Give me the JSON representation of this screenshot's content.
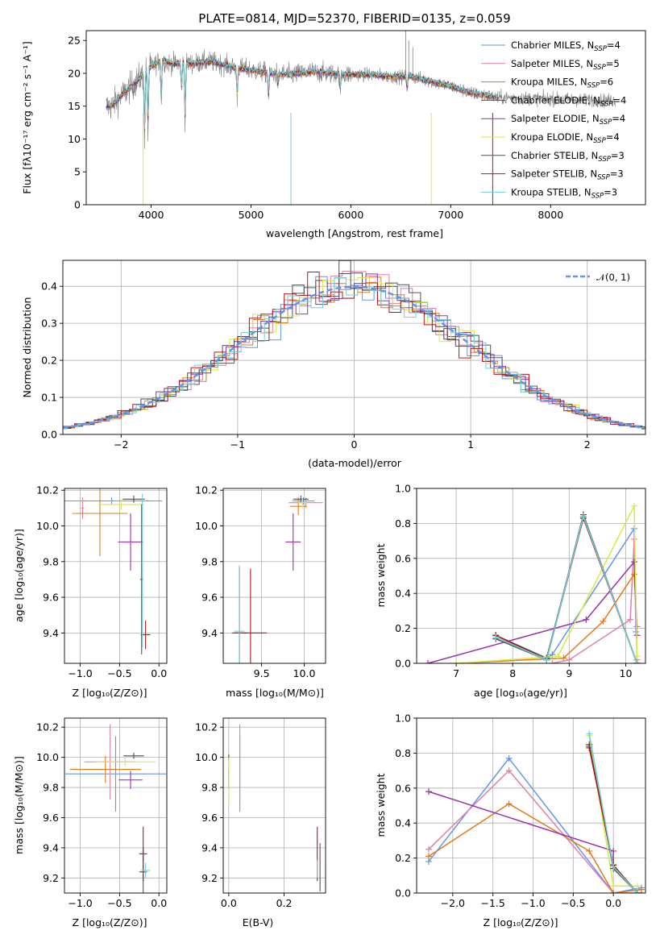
{
  "figure": {
    "title": "PLATE=0814, MJD=52370, FIBERID=0135, z=0.059"
  },
  "colors": {
    "obs": "#808080",
    "Chabrier MILES": "#6495ed",
    "Salpeter MILES": "#e07fa8",
    "Kroupa MILES": "#e07b1a",
    "Chabrier ELODIE": "#4e4e4e",
    "Salpeter ELODIE": "#9b30b0",
    "Kroupa ELODIE": "#d8e848",
    "Chabrier STELIB": "#555555",
    "Salpeter STELIB": "#b01818",
    "Kroupa STELIB": "#6fcfd8"
  },
  "labels": {
    "spec_xlabel": "wavelength [Angstrom, rest frame]",
    "spec_ylabel": "Flux [fλ10⁻¹⁷ erg cm⁻² s⁻¹ A⁻¹]",
    "res_xlabel": "(data-model)/error",
    "res_ylabel": "Normed distribution",
    "res_legend": "𝒩(0, 1)",
    "age_label": "age  [log₁₀(age/yr)]",
    "z_label": "Z [log₁₀(Z/Z⊙)]",
    "mass_label": "mass [log₁₀(M/M⊙)]",
    "mw_label": "mass weight",
    "ebv_label": "E(B-V)"
  },
  "legend_entries": [
    {
      "name": "Chabrier MILES",
      "nssp": "4"
    },
    {
      "name": "Salpeter MILES",
      "nssp": "5"
    },
    {
      "name": "Kroupa MILES",
      "nssp": "6"
    },
    {
      "name": "Chabrier ELODIE",
      "nssp": "4"
    },
    {
      "name": "Salpeter ELODIE",
      "nssp": "4"
    },
    {
      "name": "Kroupa ELODIE",
      "nssp": "4"
    },
    {
      "name": "Chabrier STELIB",
      "nssp": "3"
    },
    {
      "name": "Salpeter STELIB",
      "nssp": "3"
    },
    {
      "name": "Kroupa STELIB",
      "nssp": "3"
    }
  ],
  "chart_data": [
    {
      "id": "spectrum",
      "type": "line",
      "title": "PLATE=0814, MJD=52370, FIBERID=0135, z=0.059",
      "xlabel": "wavelength [Angstrom, rest frame]",
      "ylabel": "Flux [fλ10⁻¹⁷ erg cm⁻² s⁻¹ A⁻¹]",
      "xlim": [
        3350,
        8950
      ],
      "ylim": [
        0,
        26.5
      ],
      "xticks": [
        4000,
        5000,
        6000,
        7000,
        8000
      ],
      "yticks": [
        0,
        5,
        10,
        15,
        20,
        25
      ],
      "grid": false,
      "legend": "upper right",
      "continuum": [
        [
          3600,
          15.0
        ],
        [
          3700,
          16.5
        ],
        [
          3800,
          18.0
        ],
        [
          3900,
          19.5
        ],
        [
          4000,
          21.0
        ],
        [
          4100,
          22.0
        ],
        [
          4200,
          21.5
        ],
        [
          4400,
          21.5
        ],
        [
          4600,
          21.8
        ],
        [
          4800,
          21.0
        ],
        [
          5000,
          20.5
        ],
        [
          5200,
          20.0
        ],
        [
          5400,
          19.8
        ],
        [
          5600,
          20.2
        ],
        [
          5800,
          20.0
        ],
        [
          6000,
          19.8
        ],
        [
          6200,
          19.8
        ],
        [
          6400,
          19.5
        ],
        [
          6600,
          19.5
        ],
        [
          6800,
          18.8
        ],
        [
          7000,
          18.0
        ],
        [
          7200,
          17.0
        ],
        [
          7400,
          16.5
        ],
        [
          7500,
          16.2
        ]
      ],
      "absorption_lines": [
        [
          3934,
          9
        ],
        [
          3968,
          10
        ],
        [
          4101,
          15
        ],
        [
          4304,
          17
        ],
        [
          4340,
          12
        ],
        [
          4861,
          16
        ],
        [
          5175,
          16
        ],
        [
          5270,
          18
        ],
        [
          5893,
          17
        ],
        [
          6563,
          17.5
        ]
      ],
      "model_range": [
        3550,
        7470
      ],
      "obs_range": [
        3550,
        8650
      ]
    },
    {
      "id": "residuals",
      "type": "line",
      "xlabel": "(data-model)/error",
      "ylabel": "Normed distribution",
      "xlim": [
        -2.5,
        2.5
      ],
      "ylim": [
        0,
        0.47
      ],
      "xticks": [
        -2,
        -1,
        0,
        1,
        2
      ],
      "yticks": [
        0.0,
        0.1,
        0.2,
        0.3,
        0.4
      ],
      "grid": true,
      "legend": "upper right",
      "series": [
        {
          "name": "𝒩(0, 1)",
          "style": "dashed",
          "function": "normal",
          "mu": 0,
          "sigma": 1
        }
      ],
      "histogram_bin_width": 0.1
    },
    {
      "id": "age_vs_Z",
      "type": "scatter",
      "xlabel": "Z [log₁₀(Z/Z⊙)]",
      "ylabel": "age  [log₁₀(age/yr)]",
      "xlim": [
        -1.2,
        0.1
      ],
      "ylim": [
        9.23,
        10.21
      ],
      "xticks": [
        -1.0,
        -0.5,
        0.0
      ],
      "yticks": [
        9.4,
        9.6,
        9.8,
        10.0,
        10.2
      ],
      "grid": true,
      "points": [
        {
          "s": "Chabrier MILES",
          "x": -0.6,
          "xe": 0.64,
          "y": 10.14,
          "ye": 0.02
        },
        {
          "s": "Salpeter MILES",
          "x": -0.97,
          "xe": 0.02,
          "y": 10.1,
          "ye": 0.06
        },
        {
          "s": "Kroupa MILES",
          "x": -0.75,
          "xe": 0.35,
          "y": 10.07,
          "ye": 0.24
        },
        {
          "s": "Chabrier ELODIE",
          "x": -0.32,
          "xe": 0.14,
          "y": 10.15,
          "ye": 0.02
        },
        {
          "s": "Salpeter ELODIE",
          "x": -0.36,
          "xe": 0.16,
          "y": 9.91,
          "ye": 0.16
        },
        {
          "s": "Kroupa ELODIE",
          "x": -0.48,
          "xe": 0.29,
          "y": 10.12,
          "ye": 0.03
        },
        {
          "s": "Chabrier STELIB",
          "x": -0.22,
          "xe": 0.02,
          "y": 9.7,
          "ye": 0.42
        },
        {
          "s": "Salpeter STELIB",
          "x": -0.17,
          "xe": 0.06,
          "y": 9.39,
          "ye": 0.08
        },
        {
          "s": "Kroupa STELIB",
          "x": -0.21,
          "xe": 0.01,
          "y": 9.75,
          "ye": 0.43
        }
      ]
    },
    {
      "id": "age_vs_mass",
      "type": "scatter",
      "xlabel": "mass [log₁₀(M/M⊙)]",
      "ylabel": "",
      "xlim": [
        9.05,
        10.25
      ],
      "ylim": [
        9.23,
        10.21
      ],
      "xticks": [
        9.5,
        10.0
      ],
      "yticks": [
        9.4,
        9.6,
        9.8,
        10.0,
        10.2
      ],
      "grid": true,
      "points": [
        {
          "s": "Chabrier MILES",
          "x": 9.99,
          "xe": 0.13,
          "y": 10.14,
          "ye": 0.02
        },
        {
          "s": "Salpeter MILES",
          "x": 10.02,
          "xe": 0.2,
          "y": 10.13,
          "ye": 0.03
        },
        {
          "s": "Kroupa MILES",
          "x": 9.93,
          "xe": 0.1,
          "y": 10.11,
          "ye": 0.05
        },
        {
          "s": "Chabrier ELODIE",
          "x": 9.96,
          "xe": 0.09,
          "y": 10.15,
          "ye": 0.02
        },
        {
          "s": "Salpeter ELODIE",
          "x": 9.87,
          "xe": 0.09,
          "y": 9.91,
          "ye": 0.16
        },
        {
          "s": "Kroupa ELODIE",
          "x": 9.98,
          "xe": 0.05,
          "y": 10.13,
          "ye": 0.03
        },
        {
          "s": "Chabrier STELIB",
          "x": 9.24,
          "xe": 0.09,
          "y": 9.4,
          "ye": 0.37
        },
        {
          "s": "Salpeter STELIB",
          "x": 9.37,
          "xe": 0.19,
          "y": 9.4,
          "ye": 0.36
        },
        {
          "s": "Kroupa STELIB",
          "x": 9.24,
          "xe": 0.06,
          "y": 9.41,
          "ye": 0.37
        }
      ]
    },
    {
      "id": "massweight_vs_age",
      "type": "line",
      "xlabel": "age  [log₁₀(age/yr)]",
      "ylabel": "mass weight",
      "xlim": [
        6.3,
        10.35
      ],
      "ylim": [
        0,
        1.0
      ],
      "xticks": [
        7,
        8,
        9,
        10
      ],
      "yticks": [
        0.0,
        0.2,
        0.4,
        0.6,
        0.8,
        1.0
      ],
      "grid": true,
      "series": [
        {
          "name": "Chabrier MILES",
          "values": [
            [
              8.6,
              0.03
            ],
            [
              8.7,
              0.05
            ],
            [
              10.15,
              0.77
            ],
            [
              10.18,
              0.18
            ]
          ]
        },
        {
          "name": "Salpeter MILES",
          "values": [
            [
              8.7,
              0.0
            ],
            [
              9.0,
              0.02
            ],
            [
              10.08,
              0.25
            ],
            [
              10.15,
              0.71
            ],
            [
              10.2,
              0.02
            ]
          ]
        },
        {
          "name": "Kroupa MILES",
          "values": [
            [
              7.0,
              0.0
            ],
            [
              8.9,
              0.03
            ],
            [
              9.6,
              0.24
            ],
            [
              10.15,
              0.51
            ],
            [
              10.2,
              0.21
            ]
          ]
        },
        {
          "name": "Chabrier ELODIE",
          "values": [
            [
              7.7,
              0.16
            ],
            [
              8.6,
              0.03
            ],
            [
              9.25,
              0.84
            ],
            [
              10.2,
              0.0
            ]
          ]
        },
        {
          "name": "Salpeter ELODIE",
          "values": [
            [
              6.5,
              0.0
            ],
            [
              9.3,
              0.25
            ],
            [
              10.15,
              0.58
            ],
            [
              10.2,
              0.16
            ]
          ]
        },
        {
          "name": "Kroupa ELODIE",
          "values": [
            [
              7.0,
              0.0
            ],
            [
              8.8,
              0.04
            ],
            [
              10.15,
              0.9
            ],
            [
              10.2,
              0.04
            ]
          ]
        },
        {
          "name": "Chabrier STELIB",
          "values": [
            [
              7.7,
              0.14
            ],
            [
              8.6,
              0.02
            ],
            [
              9.25,
              0.85
            ],
            [
              10.2,
              0.0
            ]
          ]
        },
        {
          "name": "Salpeter STELIB",
          "values": [
            [
              7.7,
              0.16
            ],
            [
              8.6,
              0.02
            ],
            [
              9.25,
              0.83
            ],
            [
              10.2,
              0.0
            ]
          ]
        },
        {
          "name": "Kroupa STELIB",
          "values": [
            [
              7.7,
              0.15
            ],
            [
              8.6,
              0.02
            ],
            [
              9.25,
              0.84
            ],
            [
              10.2,
              0.0
            ]
          ]
        }
      ]
    },
    {
      "id": "mass_vs_Z",
      "type": "scatter",
      "xlabel": "Z [log₁₀(Z/Z⊙)]",
      "ylabel": "mass [log₁₀(M/M⊙)]",
      "xlim": [
        -1.2,
        0.1
      ],
      "ylim": [
        9.1,
        10.26
      ],
      "xticks": [
        -1.0,
        -0.5,
        0.0
      ],
      "yticks": [
        9.2,
        9.4,
        9.6,
        9.8,
        10.0,
        10.2
      ],
      "grid": true,
      "points": [
        {
          "s": "Chabrier MILES",
          "x": -0.55,
          "xe": 0.64,
          "y": 9.89,
          "ye": 0.25
        },
        {
          "s": "Salpeter MILES",
          "x": -0.62,
          "xe": 0.33,
          "y": 9.97,
          "ye": 0.25
        },
        {
          "s": "Kroupa MILES",
          "x": -0.68,
          "xe": 0.45,
          "y": 9.92,
          "ye": 0.09
        },
        {
          "s": "Chabrier ELODIE",
          "x": -0.32,
          "xe": 0.13,
          "y": 10.01,
          "ye": 0.02
        },
        {
          "s": "Salpeter ELODIE",
          "x": -0.36,
          "xe": 0.15,
          "y": 9.85,
          "ye": 0.06
        },
        {
          "s": "Kroupa ELODIE",
          "x": -0.43,
          "xe": 0.39,
          "y": 9.97,
          "ye": 0.03
        },
        {
          "s": "Chabrier STELIB",
          "x": -0.2,
          "xe": 0.05,
          "y": 9.24,
          "ye": 0.16
        },
        {
          "s": "Salpeter STELIB",
          "x": -0.2,
          "xe": 0.05,
          "y": 9.36,
          "ye": 0.18
        },
        {
          "s": "Kroupa STELIB",
          "x": -0.17,
          "xe": 0.06,
          "y": 9.25,
          "ye": 0.05
        }
      ]
    },
    {
      "id": "mass_vs_ebv",
      "type": "scatter",
      "xlabel": "E(B-V)",
      "ylabel": "",
      "xlim": [
        -0.02,
        0.35
      ],
      "ylim": [
        9.1,
        10.26
      ],
      "xticks": [
        0.0,
        0.2
      ],
      "yticks": [
        9.2,
        9.4,
        9.6,
        9.8,
        10.0,
        10.2
      ],
      "grid": true,
      "points": [
        {
          "s": "Chabrier MILES",
          "x": 0.04,
          "xe": 0.0,
          "y": 9.89,
          "ye": 0.25
        },
        {
          "s": "Salpeter MILES",
          "x": 0.04,
          "xe": 0.0,
          "y": 9.97,
          "ye": 0.25
        },
        {
          "s": "Kroupa MILES",
          "x": 0.0,
          "xe": 0.0,
          "y": 9.92,
          "ye": 0.09
        },
        {
          "s": "Chabrier ELODIE",
          "x": 0.0,
          "xe": 0.0,
          "y": 10.0,
          "ye": 0.02
        },
        {
          "s": "Salpeter ELODIE",
          "x": 0.0,
          "xe": 0.0,
          "y": 9.85,
          "ye": 0.06
        },
        {
          "s": "Kroupa ELODIE",
          "x": 0.0,
          "xe": 0.0,
          "y": 9.85,
          "ye": 0.15
        },
        {
          "s": "Chabrier STELIB",
          "x": 0.33,
          "xe": 0.0,
          "y": 9.27,
          "ye": 0.16
        },
        {
          "s": "Salpeter STELIB",
          "x": 0.32,
          "xe": 0.0,
          "y": 9.36,
          "ye": 0.18
        },
        {
          "s": "Kroupa STELIB",
          "x": 0.32,
          "xe": 0.0,
          "y": 9.26,
          "ye": 0.06
        }
      ]
    },
    {
      "id": "massweight_vs_Z",
      "type": "line",
      "xlabel": "Z [log₁₀(Z/Z⊙)]",
      "ylabel": "mass weight",
      "xlim": [
        -2.45,
        0.4
      ],
      "ylim": [
        0,
        1.0
      ],
      "xticks": [
        -2.0,
        -1.5,
        -1.0,
        -0.5,
        0.0
      ],
      "yticks": [
        0.0,
        0.2,
        0.4,
        0.6,
        0.8,
        1.0
      ],
      "grid": true,
      "series": [
        {
          "name": "Chabrier MILES",
          "values": [
            [
              -2.3,
              0.18
            ],
            [
              -1.3,
              0.77
            ],
            [
              0.0,
              0.0
            ],
            [
              0.35,
              0.03
            ]
          ]
        },
        {
          "name": "Salpeter MILES",
          "values": [
            [
              -2.3,
              0.25
            ],
            [
              -1.3,
              0.7
            ],
            [
              0.0,
              0.0
            ],
            [
              0.35,
              0.0
            ]
          ]
        },
        {
          "name": "Kroupa MILES",
          "values": [
            [
              -2.3,
              0.21
            ],
            [
              -1.3,
              0.51
            ],
            [
              -0.3,
              0.24
            ],
            [
              0.0,
              0.0
            ],
            [
              0.35,
              0.02
            ]
          ]
        },
        {
          "name": "Chabrier ELODIE",
          "values": [
            [
              -0.3,
              0.84
            ],
            [
              0.0,
              0.16
            ],
            [
              0.3,
              0.0
            ]
          ]
        },
        {
          "name": "Salpeter ELODIE",
          "values": [
            [
              -2.3,
              0.58
            ],
            [
              0.0,
              0.24
            ],
            [
              0.0,
              0.16
            ]
          ]
        },
        {
          "name": "Kroupa ELODIE",
          "values": [
            [
              -0.3,
              0.9
            ],
            [
              0.0,
              0.04
            ],
            [
              0.3,
              0.04
            ]
          ]
        },
        {
          "name": "Chabrier STELIB",
          "values": [
            [
              -0.3,
              0.85
            ],
            [
              0.0,
              0.14
            ],
            [
              0.3,
              0.0
            ]
          ]
        },
        {
          "name": "Salpeter STELIB",
          "values": [
            [
              -0.3,
              0.83
            ],
            [
              0.0,
              0.16
            ],
            [
              0.3,
              0.0
            ]
          ]
        },
        {
          "name": "Kroupa STELIB",
          "values": [
            [
              -0.3,
              0.91
            ],
            [
              0.0,
              0.15
            ],
            [
              0.3,
              0.0
            ]
          ]
        }
      ]
    }
  ]
}
